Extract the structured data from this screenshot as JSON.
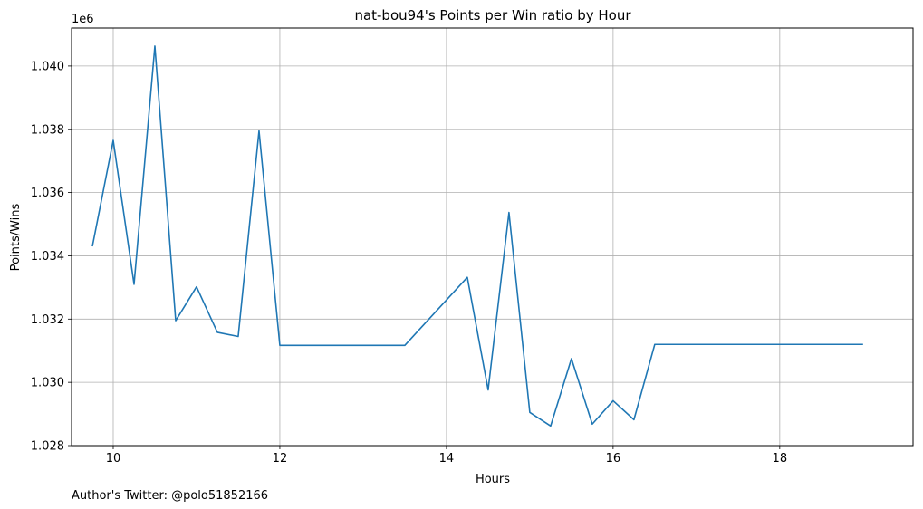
{
  "chart_data": {
    "type": "line",
    "title": "nat-bou94's Points per Win ratio by Hour",
    "xlabel": "Hours",
    "ylabel": "Points/Wins",
    "y_offset_label": "1e6",
    "footer_text": "Author's Twitter: @polo51852166",
    "xlim": [
      9.5,
      19.6
    ],
    "ylim": [
      1.028,
      1.0412
    ],
    "x_ticks": [
      10,
      12,
      14,
      16,
      18
    ],
    "y_ticks": [
      1.028,
      1.03,
      1.032,
      1.034,
      1.036,
      1.038,
      1.04
    ],
    "y_tick_labels": [
      "1.028",
      "1.030",
      "1.032",
      "1.034",
      "1.036",
      "1.038",
      "1.040"
    ],
    "grid": true,
    "series": [
      {
        "color": "#1f77b4",
        "x": [
          9.75,
          10.0,
          10.25,
          10.5,
          10.75,
          11.0,
          11.25,
          11.5,
          11.75,
          12.0,
          13.5,
          14.25,
          14.5,
          14.75,
          15.0,
          15.25,
          15.5,
          15.75,
          16.0,
          16.25,
          16.5,
          19.0
        ],
        "y": [
          1.0343,
          1.03765,
          1.0331,
          1.04063,
          1.03195,
          1.03302,
          1.03158,
          1.03145,
          1.03795,
          1.03117,
          1.03117,
          1.03332,
          1.02976,
          1.03537,
          1.02905,
          1.02862,
          1.03075,
          1.02868,
          1.02942,
          1.02882,
          1.0312,
          1.0312
        ]
      }
    ]
  }
}
